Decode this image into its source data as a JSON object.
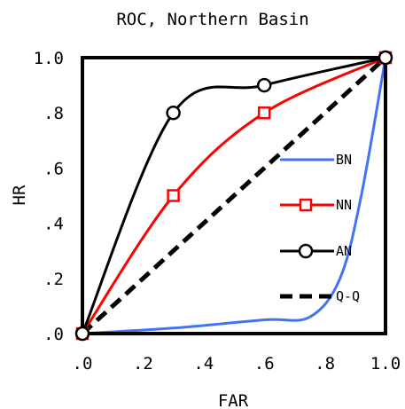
{
  "chart_data": {
    "type": "line",
    "title": "ROC, Northern Basin",
    "xlabel": "FAR",
    "ylabel": "HR",
    "xlim": [
      0,
      1
    ],
    "ylim": [
      0,
      1
    ],
    "x_ticks": [
      {
        "value": 0.0,
        "label": ".0"
      },
      {
        "value": 0.2,
        "label": ".2"
      },
      {
        "value": 0.4,
        "label": ".4"
      },
      {
        "value": 0.6,
        "label": ".6"
      },
      {
        "value": 0.8,
        "label": ".8"
      },
      {
        "value": 1.0,
        "label": "1.0"
      }
    ],
    "y_ticks": [
      {
        "value": 0.0,
        "label": ".0"
      },
      {
        "value": 0.2,
        "label": ".2"
      },
      {
        "value": 0.4,
        "label": ".4"
      },
      {
        "value": 0.6,
        "label": ".6"
      },
      {
        "value": 0.8,
        "label": ".8"
      },
      {
        "value": 1.0,
        "label": "1.0"
      }
    ],
    "grid": false,
    "legend_position": "right",
    "series": [
      {
        "name": "BN",
        "color": "#4472f4",
        "marker": "none",
        "dash": "solid",
        "x": [
          0.0,
          0.3,
          0.6,
          0.75,
          0.85,
          0.92,
          1.0
        ],
        "y": [
          0.0,
          0.02,
          0.05,
          0.06,
          0.2,
          0.5,
          1.0
        ]
      },
      {
        "name": "NN",
        "color": "#ff0000",
        "marker": "square",
        "dash": "solid",
        "x": [
          0.0,
          0.3,
          0.6,
          1.0
        ],
        "y": [
          0.0,
          0.5,
          0.8,
          1.0
        ]
      },
      {
        "name": "AN",
        "color": "#000000",
        "marker": "circle",
        "dash": "solid",
        "x": [
          0.0,
          0.3,
          0.6,
          1.0
        ],
        "y": [
          0.0,
          0.8,
          0.9,
          1.0
        ]
      },
      {
        "name": "Q-Q",
        "color": "#000000",
        "marker": "none",
        "dash": "dashed",
        "x": [
          0.0,
          1.0
        ],
        "y": [
          0.0,
          1.0
        ]
      }
    ]
  }
}
